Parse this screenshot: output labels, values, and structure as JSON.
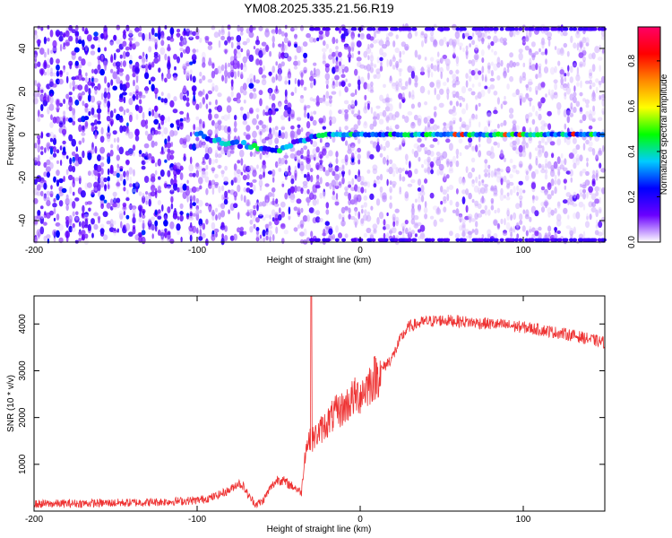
{
  "figure": {
    "title": "YM08.2025.335.21.56.R19"
  },
  "chart_data": [
    {
      "type": "heatmap",
      "xlabel": "Height of straight line (km)",
      "ylabel": "Frequency (Hz)",
      "xlim": [
        -200,
        150
      ],
      "ylim": [
        -50,
        50
      ],
      "x_ticks": [
        -200,
        -100,
        0,
        100
      ],
      "x_tick_labels": [
        "-200",
        "-100",
        "0",
        "100"
      ],
      "y_ticks": [
        -40,
        -20,
        0,
        20,
        40
      ],
      "y_tick_labels": [
        "-40",
        "-20",
        "0",
        "20",
        "40"
      ],
      "colorbar": {
        "label": "Normalized spectral amplitude",
        "range": [
          0,
          0.95
        ],
        "ticks": [
          0,
          0.2,
          0.4,
          0.6,
          0.8
        ],
        "tick_labels": [
          "0.0",
          "0.2",
          "0.4",
          "0.6",
          "0.8"
        ],
        "colormap": [
          "#ffffff",
          "#6a00ff",
          "#0000ff",
          "#00ccff",
          "#00ff00",
          "#ffff00",
          "#ff8800",
          "#ff0000",
          "#ff0066"
        ]
      },
      "ridge": {
        "description_points_x": [
          -100,
          -90,
          -80,
          -70,
          -60,
          -50,
          -40,
          -30,
          -20,
          0,
          50,
          100,
          150
        ],
        "description_points_y": [
          1,
          -2,
          -4,
          -5,
          -6,
          -7,
          -4,
          -1,
          0,
          0,
          0,
          0,
          0
        ]
      },
      "grid": false
    },
    {
      "type": "line",
      "xlabel": "Height of straight line (km)",
      "ylabel": "SNR (10 * v/v)",
      "xlim": [
        -200,
        150
      ],
      "ylim": [
        0,
        4600
      ],
      "x_ticks": [
        -200,
        -100,
        0,
        100
      ],
      "x_tick_labels": [
        "-200",
        "-100",
        "0",
        "100"
      ],
      "y_ticks": [
        1000,
        2000,
        3000,
        4000
      ],
      "y_tick_labels": [
        "1000",
        "2000",
        "3000",
        "4000"
      ],
      "series": [
        {
          "color": "#ee3333",
          "x": [
            -200,
            -180,
            -160,
            -140,
            -120,
            -100,
            -90,
            -80,
            -75,
            -72,
            -68,
            -64,
            -60,
            -55,
            -50,
            -45,
            -40,
            -36,
            -34,
            -32,
            -30,
            -25,
            -20,
            -15,
            -10,
            -5,
            0,
            5,
            10,
            15,
            20,
            25,
            30,
            40,
            50,
            60,
            70,
            80,
            90,
            100,
            110,
            120,
            130,
            140,
            150
          ],
          "y": [
            150,
            160,
            170,
            180,
            200,
            230,
            300,
            450,
            600,
            550,
            300,
            150,
            200,
            500,
            700,
            600,
            500,
            400,
            1200,
            1500,
            1500,
            1700,
            1900,
            2100,
            2200,
            2400,
            2500,
            2700,
            2900,
            3100,
            3300,
            3700,
            3950,
            4050,
            4080,
            4060,
            4030,
            4000,
            3970,
            3930,
            3880,
            3820,
            3760,
            3680,
            3600
          ]
        }
      ],
      "annotations": [
        {
          "x": -30,
          "y": 4600,
          "text": ""
        }
      ],
      "grid": false
    }
  ]
}
